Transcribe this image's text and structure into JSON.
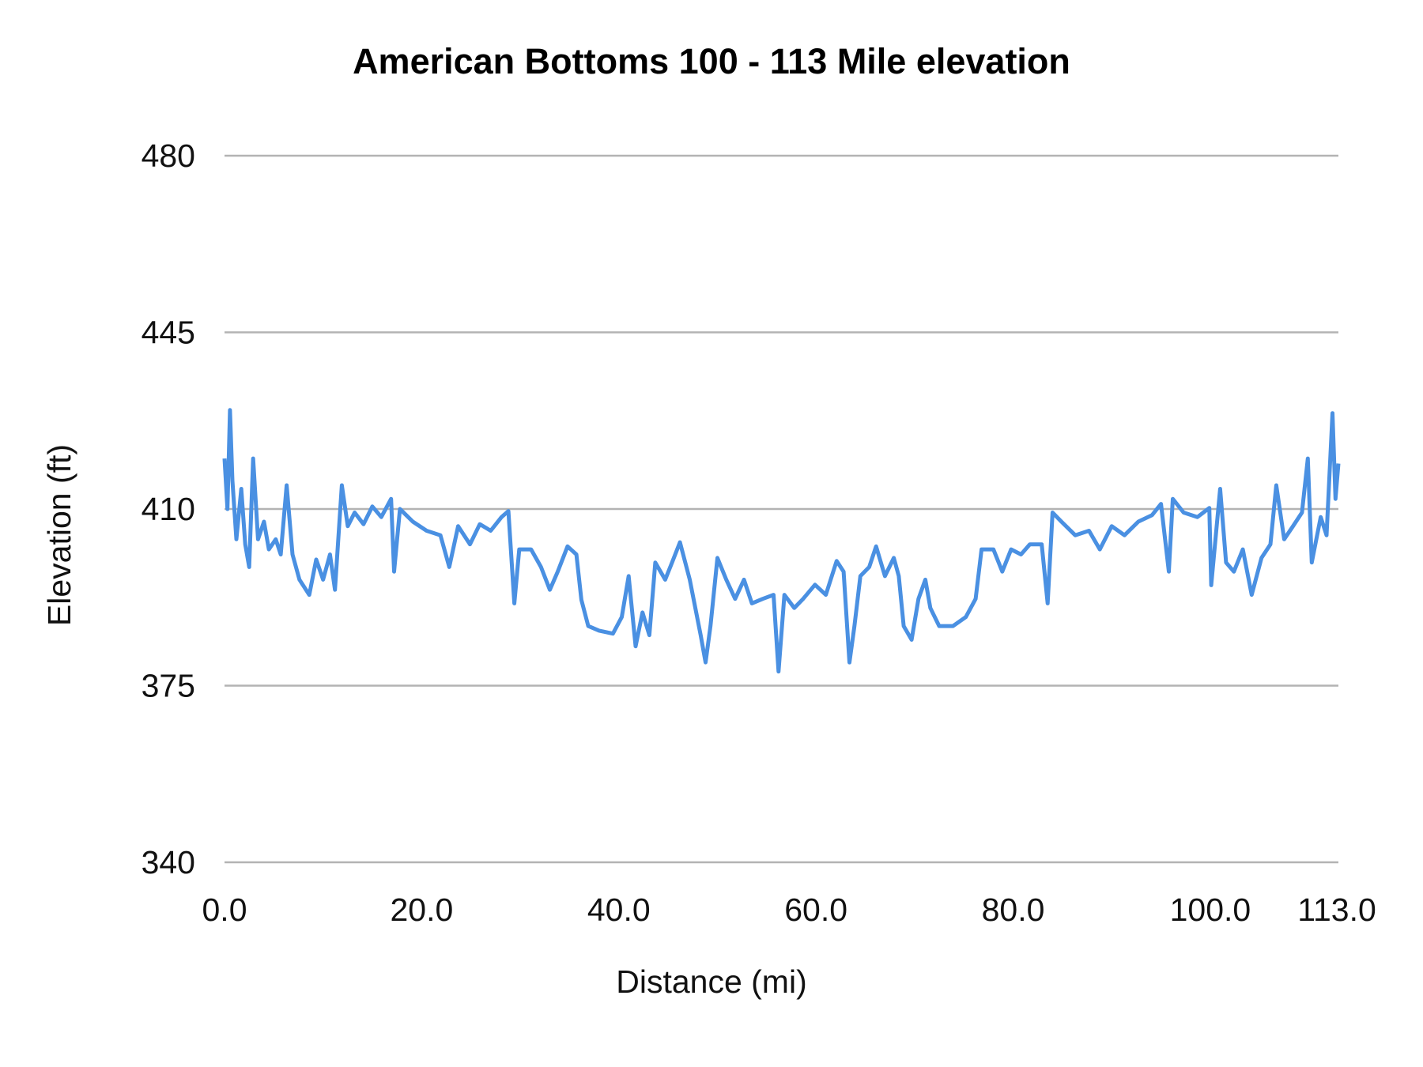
{
  "chart_data": {
    "type": "line",
    "title": "American Bottoms 100 - 113 Mile elevation",
    "xlabel": "Distance (mi)",
    "ylabel": "Elevation (ft)",
    "xlim": [
      0,
      113
    ],
    "ylim": [
      340,
      480
    ],
    "x_ticks": [
      "0.0",
      "20.0",
      "40.0",
      "60.0",
      "80.0",
      "100.0",
      "113.0"
    ],
    "x_tick_values": [
      0,
      20,
      40,
      60,
      80,
      100,
      113
    ],
    "y_ticks": [
      "340",
      "375",
      "410",
      "445",
      "480"
    ],
    "y_tick_values": [
      340,
      375,
      410,
      445,
      480
    ],
    "grid": "horizontal",
    "legend": "none",
    "color": "#4a90e2",
    "series": [
      {
        "x": [
          0,
          0.3,
          0.55,
          0.8,
          1.2,
          1.7,
          2.1,
          2.5,
          2.9,
          3.4,
          4.0,
          4.5,
          5.2,
          5.7,
          6.3,
          6.9,
          7.6,
          8.6,
          9.3,
          10.0,
          10.7,
          11.2,
          11.9,
          12.5,
          13.2,
          14.1,
          15.0,
          15.9,
          16.9,
          17.2,
          17.8,
          19.1,
          20.5,
          21.9,
          22.8,
          23.7,
          24.9,
          25.9,
          27.0,
          28.1,
          28.8,
          29.4,
          29.9,
          31.1,
          32.1,
          33.0,
          33.8,
          34.8,
          35.7,
          36.2,
          36.9,
          38.0,
          39.4,
          40.3,
          41.0,
          41.7,
          42.4,
          43.1,
          43.7,
          44.7,
          45.4,
          46.2,
          47.2,
          48.3,
          48.8,
          49.3,
          50.0,
          50.9,
          51.8,
          52.7,
          53.5,
          54.6,
          55.7,
          56.2,
          56.8,
          57.8,
          58.7,
          59.9,
          61.0,
          62.1,
          62.8,
          63.4,
          63.9,
          64.5,
          65.4,
          66.1,
          67.0,
          67.9,
          68.4,
          68.9,
          69.7,
          70.4,
          71.1,
          71.6,
          72.5,
          73.9,
          75.2,
          76.2,
          76.8,
          78.0,
          78.9,
          79.8,
          80.8,
          81.7,
          82.9,
          83.5,
          84.0,
          84.9,
          86.3,
          87.7,
          88.8,
          90.0,
          91.3,
          92.7,
          94.1,
          95.0,
          95.8,
          96.2,
          97.3,
          98.7,
          99.9,
          100.1,
          101.0,
          101.6,
          102.4,
          103.3,
          104.2,
          105.2,
          106.1,
          106.7,
          107.5,
          108.4,
          109.3,
          109.9,
          110.3,
          111.2,
          111.8,
          112.4,
          112.7,
          113.0
        ],
        "y": [
          420,
          410,
          429.6,
          415.6,
          404,
          414,
          403,
          398.5,
          420,
          404,
          407.5,
          402,
          404,
          401,
          414.7,
          401,
          396,
          393,
          400,
          396,
          401,
          394,
          414.7,
          406.6,
          409.3,
          407,
          410.5,
          408.4,
          412,
          397.6,
          410,
          407.5,
          405.7,
          404.8,
          398.5,
          406.6,
          403,
          407,
          405.7,
          408.4,
          409.6,
          391.3,
          402,
          402,
          398.5,
          394,
          397.6,
          402.6,
          401,
          392,
          386.8,
          385.9,
          385.3,
          388.6,
          396.7,
          382.8,
          389.5,
          385,
          399.4,
          396,
          399.4,
          403.4,
          396,
          385,
          379.6,
          386.8,
          400.3,
          396,
          392.2,
          396,
          391.3,
          392.2,
          393,
          377.8,
          393,
          390.4,
          392.2,
          395,
          393,
          399.7,
          397.6,
          379.6,
          386.8,
          396.7,
          398.5,
          402.6,
          396.7,
          400.3,
          396.7,
          386.8,
          384.1,
          392.2,
          396,
          390.4,
          386.8,
          386.8,
          388.6,
          392.2,
          402,
          402,
          397.6,
          402,
          401,
          403,
          403,
          391.3,
          409.3,
          407.5,
          404.8,
          405.7,
          402,
          406.6,
          404.8,
          407.5,
          408.8,
          411,
          397.6,
          412,
          409.3,
          408.4,
          410.2,
          394.9,
          414,
          399.4,
          397.6,
          402,
          393,
          400.3,
          403,
          414.7,
          404,
          406.6,
          409.3,
          420,
          399.4,
          408.4,
          404.8,
          429,
          412,
          419
        ]
      }
    ]
  }
}
